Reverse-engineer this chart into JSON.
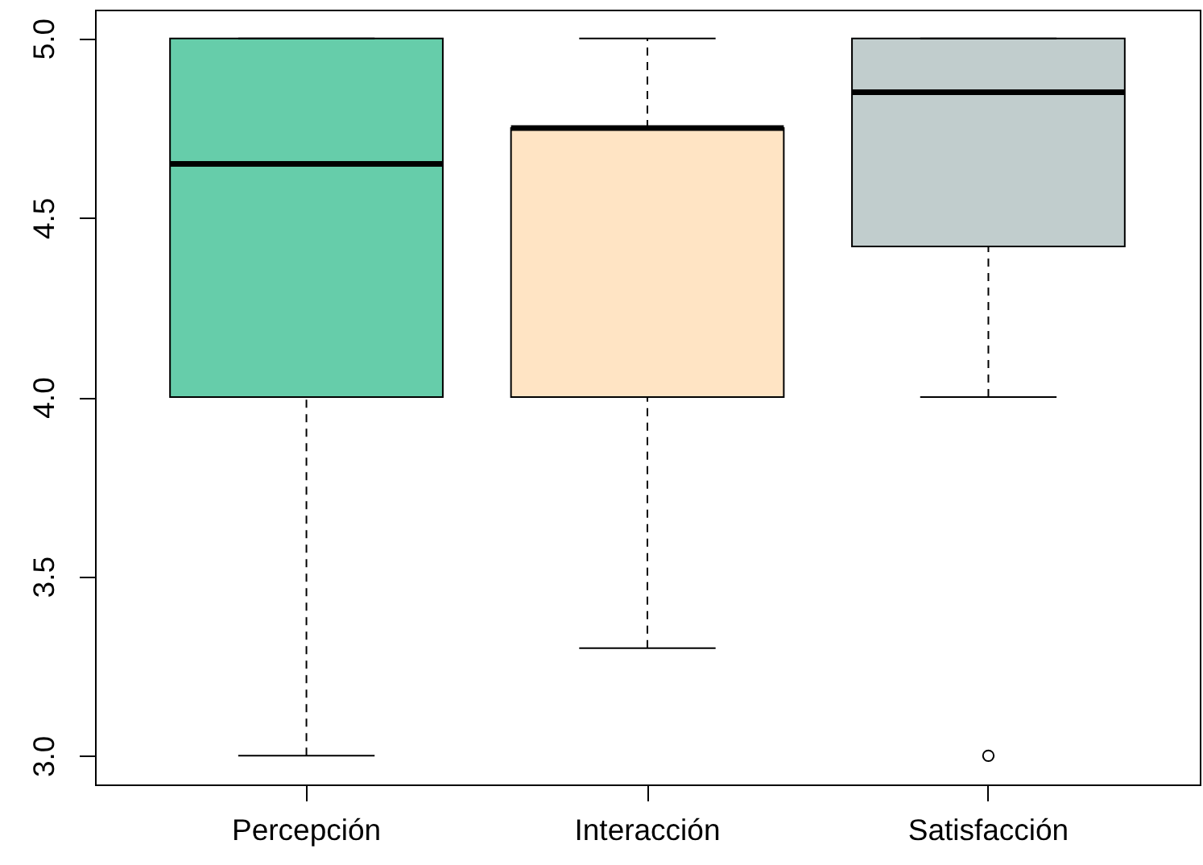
{
  "chart_data": {
    "type": "box",
    "categories": [
      "Percepción",
      "Interacción",
      "Satisfacción"
    ],
    "boxes": [
      {
        "low": 3.0,
        "q1": 4.0,
        "median": 4.65,
        "q3": 5.0,
        "high": 5.0
      },
      {
        "low": 3.3,
        "q1": 4.0,
        "median": 4.75,
        "q3": 4.75,
        "high": 5.0
      },
      {
        "low": 4.0,
        "q1": 4.42,
        "median": 4.85,
        "q3": 5.0,
        "high": 5.0,
        "outliers": [
          3.0
        ]
      }
    ],
    "colors": [
      "#66cdaa",
      "#ffe4c4",
      "#c1cdcd"
    ],
    "ylim": [
      2.92,
      5.08
    ],
    "yticks": [
      {
        "value": 3,
        "label": "3.0"
      },
      {
        "value": 3.5,
        "label": "3.5"
      },
      {
        "value": 4,
        "label": "4.0"
      },
      {
        "value": 4.5,
        "label": "4.5"
      },
      {
        "value": 5,
        "label": "5.0"
      }
    ],
    "line_style": "dashed"
  }
}
